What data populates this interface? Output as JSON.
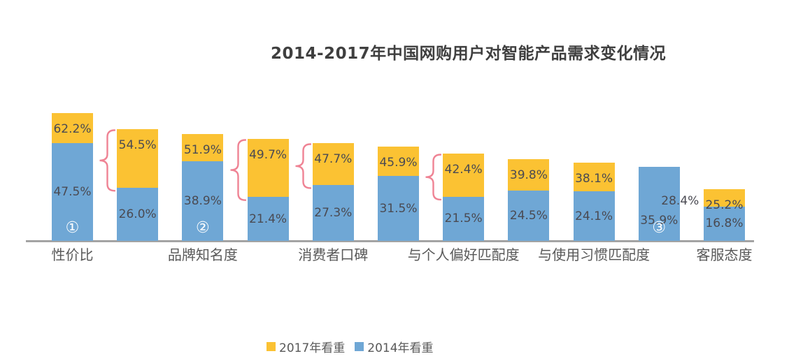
{
  "chart_data": {
    "type": "bar",
    "title": "2014-2017年中国网购用户对智能产品需求变化情况",
    "unit": "%",
    "ylim": [
      0,
      65
    ],
    "grid": false,
    "legend_position": "bottom",
    "categories": [
      "性价比",
      "品牌知名度",
      "消费者口碑",
      "与个人偏好匹配度",
      "与使用习惯匹配度",
      "客服态度"
    ],
    "series": [
      {
        "name": "2017年看重",
        "color": "#FBC233",
        "values": [
          62.2,
          54.5,
          51.9,
          49.7,
          47.7,
          45.9,
          42.4,
          39.8,
          38.1,
          28.4,
          25.2
        ]
      },
      {
        "name": "2014年看重",
        "color": "#6FA7D5",
        "values": [
          47.5,
          26.0,
          38.9,
          21.4,
          27.3,
          31.5,
          21.5,
          24.5,
          24.1,
          35.9,
          16.8
        ]
      }
    ],
    "bars": [
      {
        "v2017": 62.2,
        "v2014": 47.5,
        "marker": "①",
        "category": "性价比"
      },
      {
        "v2017": 54.5,
        "v2014": 26.0,
        "brace": true
      },
      {
        "v2017": 51.9,
        "v2014": 38.9,
        "marker": "②",
        "category": "品牌知名度"
      },
      {
        "v2017": 49.7,
        "v2014": 21.4,
        "brace": true
      },
      {
        "v2017": 47.7,
        "v2014": 27.3,
        "brace": true,
        "category": "消费者口碑"
      },
      {
        "v2017": 45.9,
        "v2014": 31.5
      },
      {
        "v2017": 42.4,
        "v2014": 21.5,
        "brace": true,
        "category": "与个人偏好匹配度"
      },
      {
        "v2017": 39.8,
        "v2014": 24.5
      },
      {
        "v2017": 38.1,
        "v2014": 24.1,
        "category": "与使用习惯匹配度"
      },
      {
        "v2017": 28.4,
        "v2014": 35.9,
        "marker": "③",
        "labels_stacked_right": true
      },
      {
        "v2017": 25.2,
        "v2014": 16.8,
        "category": "客服态度"
      }
    ],
    "legend": [
      {
        "label": "2017年看重",
        "color": "#FBC233"
      },
      {
        "label": "2014年看重",
        "color": "#6FA7D5"
      }
    ],
    "colors": {
      "bar_2017": "#FBC233",
      "bar_2014": "#6FA7D5",
      "value_label": "#4A4A52",
      "title": "#3F3F3F",
      "axis_line": "#A3A3A3",
      "category_label": "#595959",
      "brace": "#EF8394",
      "marker": "#FFFFFF"
    }
  }
}
